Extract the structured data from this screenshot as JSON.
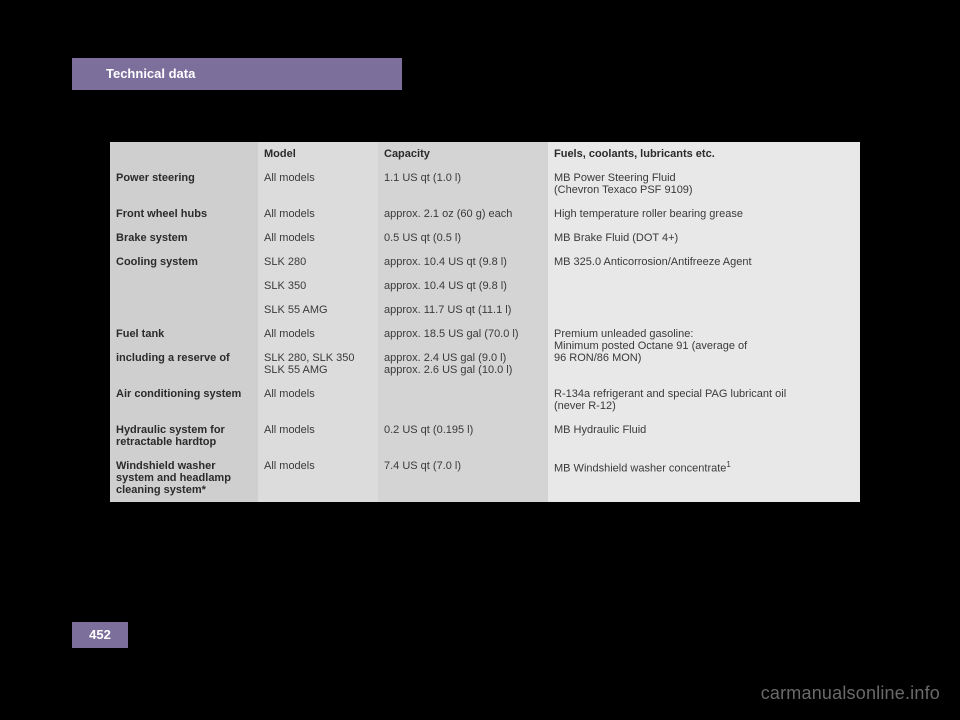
{
  "header": {
    "title": "Technical data"
  },
  "footer": {
    "page": "452"
  },
  "watermark": "carmanualsonline.info",
  "table": {
    "columns": {
      "item": "",
      "model": "Model",
      "capacity": "Capacity",
      "fuel": "Fuels, coolants, lubricants etc."
    },
    "rows": {
      "power_steering": {
        "item": "Power steering",
        "model": "All models",
        "capacity": "1.1 US qt (1.0 l)",
        "fuel1": "MB Power Steering Fluid",
        "fuel2": "(Chevron Texaco PSF 9109)"
      },
      "front_wheel_hubs": {
        "item": "Front wheel hubs",
        "model": "All models",
        "capacity": "approx. 2.1 oz (60 g) each",
        "fuel": "High temperature roller bearing grease"
      },
      "brake_system": {
        "item": "Brake system",
        "model": "All models",
        "capacity": "0.5 US qt (0.5 l)",
        "fuel": "MB Brake Fluid (DOT 4+)"
      },
      "cooling_system": {
        "item": "Cooling system",
        "m1": "SLK 280",
        "c1": "approx. 10.4 US qt (9.8 l)",
        "m2": "SLK 350",
        "c2": "approx. 10.4 US qt (9.8 l)",
        "m3": "SLK 55 AMG",
        "c3": "approx. 11.7 US qt (11.1 l)",
        "fuel": "MB 325.0 Anticorrosion/Antifreeze Agent"
      },
      "fuel_tank": {
        "item": "Fuel tank",
        "model": "All models",
        "capacity": "approx. 18.5 US gal (70.0 l)",
        "fuel1": "Premium unleaded gasoline:",
        "fuel2": "Minimum posted Octane 91 (average of",
        "fuel3": "96 RON/86 MON)"
      },
      "fuel_reserve": {
        "item": "including a reserve of",
        "m_a": "SLK 280, SLK 350",
        "m_b": "SLK 55 AMG",
        "c_a": "approx. 2.4 US gal (9.0 l)",
        "c_b": "approx. 2.6 US gal (10.0 l)"
      },
      "air_conditioning": {
        "item": "Air conditioning system",
        "model": "All models",
        "capacity": "",
        "fuel1": "R-134a refrigerant and special PAG lubricant oil",
        "fuel2": "(never R-12)"
      },
      "hydraulic": {
        "item1": "Hydraulic system for",
        "item2": "retractable hardtop",
        "model": "All models",
        "capacity": "0.2 US qt (0.195 l)",
        "fuel": "MB Hydraulic Fluid"
      },
      "washer": {
        "item1": "Windshield washer",
        "item2": "system and headlamp",
        "item3": "cleaning system*",
        "model": "All models",
        "capacity": "7.4 US qt (7.0 l)",
        "fuel": "MB Windshield washer concentrate",
        "sup": "1"
      }
    }
  }
}
